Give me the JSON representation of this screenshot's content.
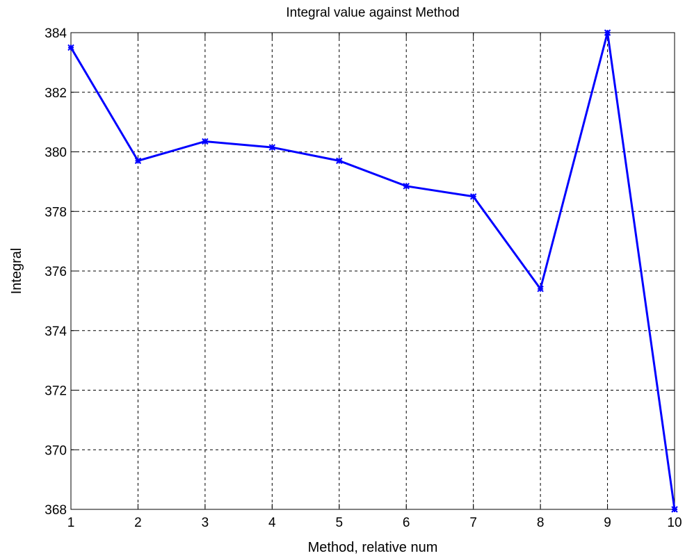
{
  "chart_data": {
    "type": "line",
    "title": "Integral value against Method",
    "xlabel": "Method, relative num",
    "ylabel": "Integral",
    "xlim": [
      1,
      10
    ],
    "ylim": [
      368,
      384
    ],
    "xticks": [
      "1",
      "2",
      "3",
      "4",
      "5",
      "6",
      "7",
      "8",
      "9",
      "10"
    ],
    "yticks": [
      "368",
      "370",
      "372",
      "374",
      "376",
      "378",
      "380",
      "382",
      "384"
    ],
    "grid": true,
    "series": [
      {
        "color": "#0000ff",
        "marker": "star",
        "x": [
          1,
          2,
          3,
          4,
          5,
          6,
          7,
          8,
          9,
          10
        ],
        "y": [
          383.5,
          379.7,
          380.35,
          380.15,
          379.7,
          378.85,
          378.5,
          375.4,
          384.0,
          368.0
        ]
      }
    ]
  }
}
